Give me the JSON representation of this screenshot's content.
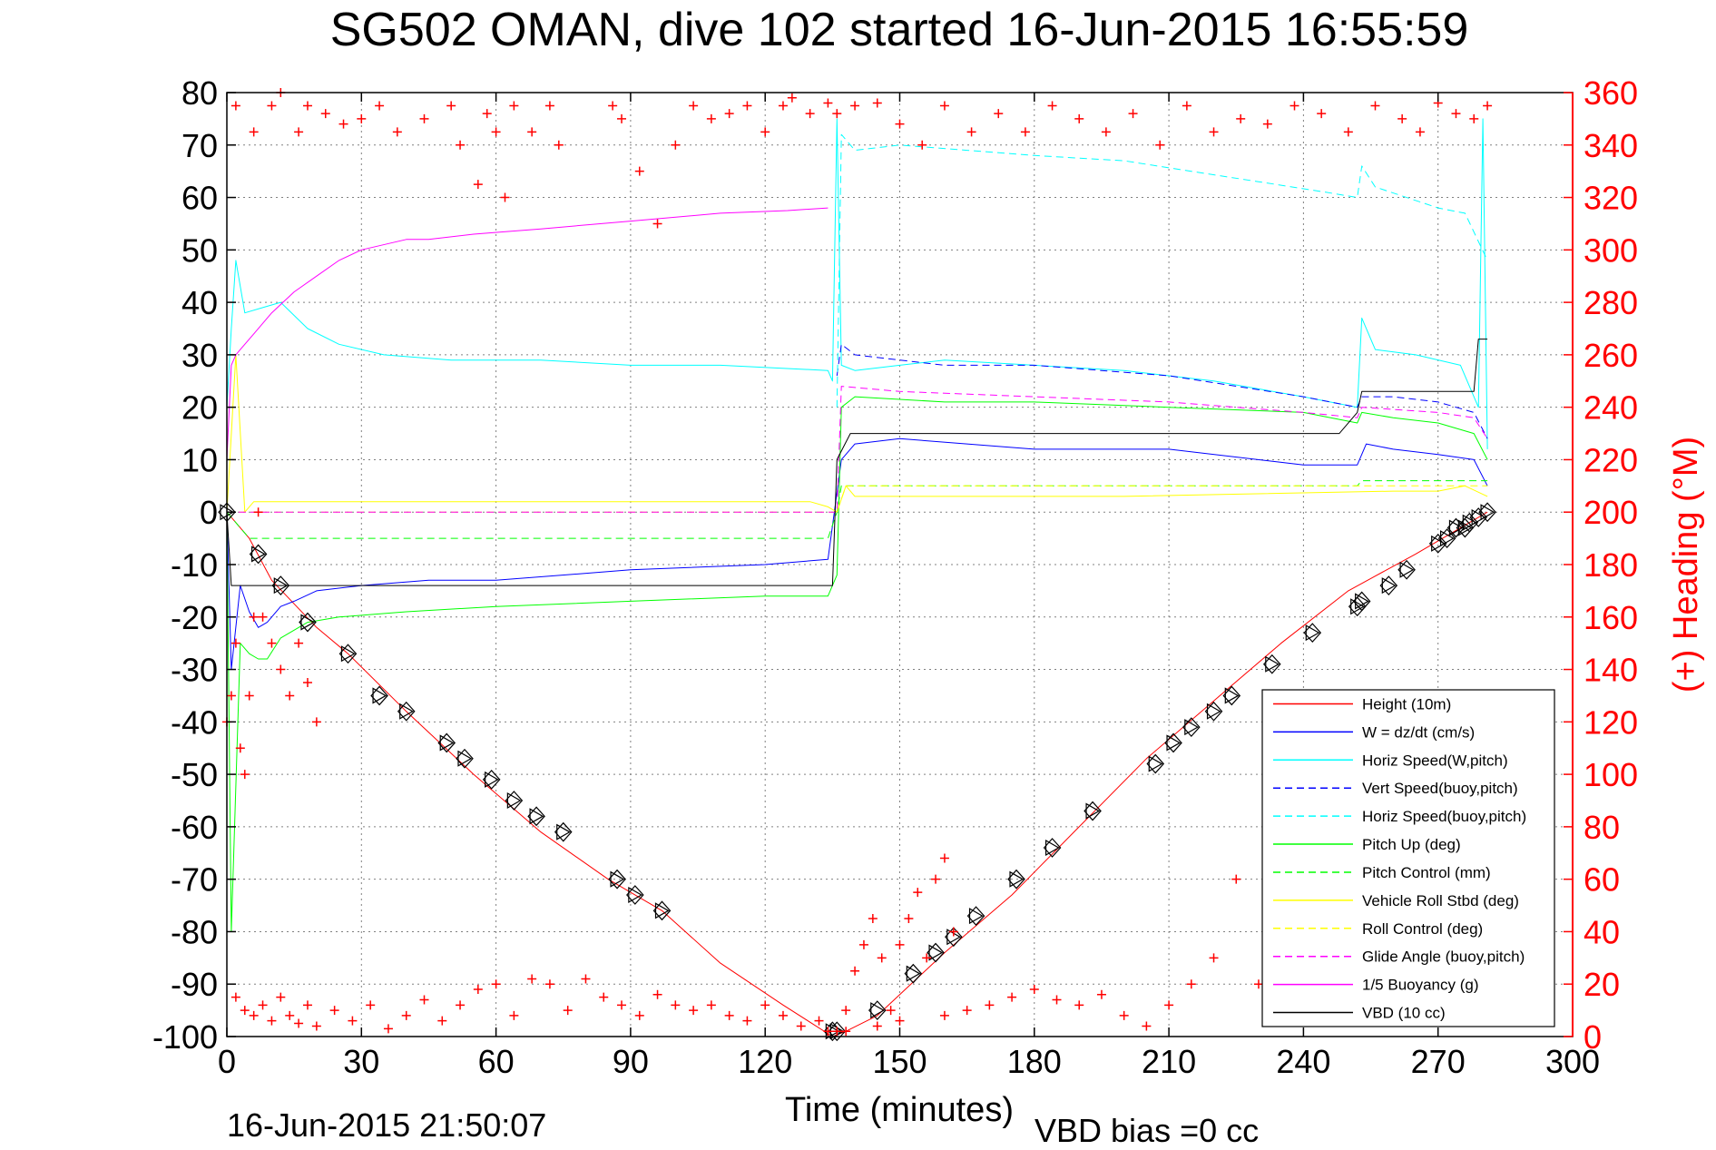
{
  "header": {
    "title": "SG502 OMAN, dive 102 started 16-Jun-2015 16:55:59"
  },
  "footer": {
    "timestamp": "16-Jun-2015 21:50:07",
    "vbd_bias": "VBD bias =0 cc"
  },
  "colors": {
    "height": "#ff0000",
    "w": "#0000ff",
    "horiz_speed": "#00ffff",
    "pitch": "#00ff00",
    "roll": "#ffff00",
    "glide": "#ff00ff",
    "buoyancy": "#ff00ff",
    "vbd": "#000000",
    "heading": "#ff0000",
    "grid": "#808080"
  },
  "chart_data": {
    "type": "line",
    "title": "SG502 OMAN, dive 102 started 16-Jun-2015 16:55:59",
    "xlabel": "Time (minutes)",
    "ylabel": "",
    "y2label": "(+) Heading (°M)",
    "xlim": [
      0,
      300
    ],
    "ylim": [
      -100,
      80
    ],
    "y2lim": [
      0,
      360
    ],
    "grid": true,
    "legend_position": "bottom-right",
    "xticks": [
      0,
      30,
      60,
      90,
      120,
      150,
      180,
      210,
      240,
      270,
      300
    ],
    "yticks": [
      80,
      70,
      60,
      50,
      40,
      30,
      20,
      10,
      0,
      -10,
      -20,
      -30,
      -40,
      -50,
      -60,
      -70,
      -80,
      -90,
      -100
    ],
    "y2ticks": [
      360,
      340,
      320,
      300,
      280,
      260,
      240,
      220,
      200,
      180,
      160,
      140,
      120,
      100,
      80,
      60,
      40,
      20,
      0
    ],
    "legend": [
      {
        "label": "Height (10m)",
        "color": "#ff0000",
        "dash": "solid"
      },
      {
        "label": "W = dz/dt (cm/s)",
        "color": "#0000ff",
        "dash": "solid"
      },
      {
        "label": "Horiz Speed(W,pitch)",
        "color": "#00ffff",
        "dash": "solid"
      },
      {
        "label": "Vert Speed(buoy,pitch)",
        "color": "#0000ff",
        "dash": "dashed"
      },
      {
        "label": "Horiz Speed(buoy,pitch)",
        "color": "#00ffff",
        "dash": "dashed"
      },
      {
        "label": "Pitch Up (deg)",
        "color": "#00ff00",
        "dash": "solid"
      },
      {
        "label": "Pitch Control (mm)",
        "color": "#00ff00",
        "dash": "dashed"
      },
      {
        "label": "Vehicle Roll Stbd (deg)",
        "color": "#ffff00",
        "dash": "solid"
      },
      {
        "label": "Roll Control (deg)",
        "color": "#ffff00",
        "dash": "dashed"
      },
      {
        "label": "Glide Angle (buoy,pitch)",
        "color": "#ff00ff",
        "dash": "dashed"
      },
      {
        "label": "1/5 Buoyancy (g)",
        "color": "#ff00ff",
        "dash": "solid"
      },
      {
        "label": "VBD (10 cc)",
        "color": "#000000",
        "dash": "solid"
      }
    ],
    "series": [
      {
        "name": "Height (10m)",
        "color": "#ff0000",
        "dash": "solid",
        "width": 1,
        "x": [
          0,
          5,
          10,
          20,
          27,
          40,
          55,
          70,
          85,
          97,
          110,
          124,
          135,
          138,
          145,
          160,
          175,
          190,
          205,
          220,
          235,
          250,
          265,
          275,
          281
        ],
        "y": [
          0,
          -5,
          -13,
          -22,
          -27,
          -38,
          -50,
          -61,
          -70,
          -76,
          -86,
          -94,
          -100,
          -99,
          -96,
          -84,
          -73,
          -60,
          -47,
          -36,
          -25,
          -15,
          -8,
          -3,
          0
        ]
      },
      {
        "name": "W = dz/dt (cm/s)",
        "color": "#0000ff",
        "dash": "solid",
        "width": 1,
        "x": [
          0,
          1,
          3,
          5,
          7,
          9,
          12,
          15,
          20,
          30,
          45,
          60,
          90,
          120,
          134,
          137,
          140,
          150,
          165,
          180,
          210,
          240,
          252,
          254,
          260,
          270,
          278,
          281
        ],
        "y": [
          0,
          -30,
          -14,
          -19,
          -22,
          -21,
          -18,
          -17,
          -15,
          -14,
          -13,
          -13,
          -11,
          -10,
          -9,
          10,
          13,
          14,
          13,
          12,
          12,
          9,
          9,
          13,
          12,
          11,
          10,
          5
        ]
      },
      {
        "name": "Horiz Speed(W,pitch)",
        "color": "#00ffff",
        "dash": "solid",
        "width": 1,
        "x": [
          0,
          1,
          2,
          4,
          8,
          12,
          18,
          25,
          35,
          50,
          70,
          90,
          110,
          134,
          135,
          136,
          137,
          140,
          150,
          160,
          180,
          200,
          220,
          240,
          252,
          253,
          256,
          265,
          275,
          279,
          280,
          281
        ],
        "y": [
          20,
          35,
          48,
          38,
          39,
          40,
          35,
          32,
          30,
          29,
          29,
          28,
          28,
          27,
          25,
          75,
          28,
          27,
          28,
          29,
          28,
          27,
          25,
          22,
          20,
          37,
          31,
          30,
          28,
          20,
          75,
          12
        ]
      },
      {
        "name": "Vert Speed(buoy,pitch)",
        "color": "#0000ff",
        "dash": "dashed",
        "width": 1,
        "x": [
          136,
          137,
          140,
          150,
          160,
          180,
          210,
          240,
          252,
          253,
          260,
          270,
          278,
          281
        ],
        "y": [
          26,
          32,
          30,
          29,
          28,
          28,
          26,
          22,
          20,
          22,
          22,
          21,
          19,
          14
        ]
      },
      {
        "name": "Horiz Speed(buoy,pitch)",
        "color": "#00ffff",
        "dash": "dashed",
        "width": 1,
        "x": [
          136,
          137,
          140,
          150,
          165,
          180,
          200,
          215,
          230,
          245,
          252,
          253,
          256,
          270,
          276,
          281
        ],
        "y": [
          20,
          72,
          69,
          70,
          69,
          68,
          67,
          65,
          63,
          61,
          60,
          66,
          62,
          58,
          57,
          48
        ]
      },
      {
        "name": "Pitch Up (deg)",
        "color": "#00ff00",
        "dash": "solid",
        "width": 1,
        "x": [
          0,
          1,
          3,
          5,
          7,
          9,
          12,
          18,
          25,
          40,
          60,
          90,
          120,
          134,
          136,
          137,
          140,
          160,
          180,
          210,
          240,
          252,
          253,
          260,
          270,
          278,
          281
        ],
        "y": [
          0,
          -80,
          -25,
          -27,
          -28,
          -28,
          -24,
          -21,
          -20,
          -19,
          -18,
          -17,
          -16,
          -16,
          -12,
          20,
          22,
          21,
          21,
          20,
          19,
          17,
          19,
          18,
          17,
          15,
          10
        ]
      },
      {
        "name": "Pitch Control (mm)",
        "color": "#00ff00",
        "dash": "dashed",
        "width": 1,
        "x": [
          0,
          5,
          134,
          136,
          137,
          252,
          253,
          281
        ],
        "y": [
          0,
          -5,
          -5,
          0,
          5,
          5,
          6,
          6
        ]
      },
      {
        "name": "Vehicle Roll Stbd (deg)",
        "color": "#ffff00",
        "dash": "solid",
        "width": 1,
        "x": [
          0,
          2,
          4,
          6,
          130,
          134,
          136,
          138,
          140,
          200,
          260,
          270,
          276,
          281
        ],
        "y": [
          0,
          30,
          0,
          2,
          2,
          1,
          0,
          5,
          3,
          3,
          4,
          4,
          5,
          3
        ]
      },
      {
        "name": "Roll Control (deg)",
        "color": "#ffff00",
        "dash": "dashed",
        "width": 1,
        "x": [
          0,
          134,
          136,
          138,
          281
        ],
        "y": [
          0,
          0,
          0,
          5,
          5
        ]
      },
      {
        "name": "Glide Angle (buoy,pitch)",
        "color": "#ff00ff",
        "dash": "dashed",
        "width": 1,
        "x": [
          0,
          134,
          136,
          137,
          150,
          180,
          210,
          240,
          252,
          253,
          270,
          278,
          281
        ],
        "y": [
          0,
          0,
          0,
          24,
          23,
          22,
          21,
          19,
          18,
          20,
          19,
          18,
          14
        ]
      },
      {
        "name": "1/5 Buoyancy (g)",
        "color": "#ff00ff",
        "dash": "solid",
        "width": 1,
        "x": [
          0,
          1,
          2,
          3,
          6,
          10,
          15,
          20,
          25,
          30,
          40,
          45,
          55,
          70,
          90,
          110,
          125,
          134
        ],
        "y": [
          10,
          28,
          30,
          31,
          34,
          38,
          42,
          45,
          48,
          50,
          52,
          52,
          53,
          54,
          55.5,
          57,
          57.5,
          58
        ]
      },
      {
        "name": "VBD (10 cc)",
        "color": "#000000",
        "dash": "solid",
        "width": 1,
        "x": [
          0,
          1,
          2,
          40,
          45,
          134,
          135,
          136,
          139,
          140,
          247,
          248,
          252,
          253,
          274,
          275,
          278,
          279,
          281
        ],
        "y": [
          0,
          -14,
          -14,
          -14,
          -14,
          -14,
          -14,
          10,
          15,
          15,
          15,
          15,
          19,
          23,
          23,
          23,
          23,
          33,
          33
        ]
      }
    ],
    "markers": {
      "name": "Height samples",
      "x": [
        0,
        7,
        12,
        18,
        27,
        34,
        40,
        49,
        53,
        59,
        64,
        69,
        75,
        87,
        91,
        97,
        135,
        136,
        145,
        153,
        158,
        162,
        167,
        176,
        184,
        193,
        207,
        211,
        215,
        220,
        224,
        233,
        242,
        252,
        253,
        259,
        263,
        270,
        272,
        274,
        276,
        277,
        279,
        281
      ],
      "y": [
        0,
        -8,
        -14,
        -21,
        -27,
        -35,
        -38,
        -44,
        -47,
        -51,
        -55,
        -58,
        -61,
        -70,
        -73,
        -76,
        -99,
        -99,
        -95,
        -88,
        -84,
        -81,
        -77,
        -70,
        -64,
        -57,
        -48,
        -44,
        -41,
        -38,
        -35,
        -29,
        -23,
        -18,
        -17,
        -14,
        -11,
        -6,
        -5,
        -3,
        -3,
        -2,
        -1,
        0
      ]
    },
    "heading_segments": [
      {
        "axis": "right",
        "x": [
          0,
          1,
          2,
          3,
          4,
          5,
          6,
          7,
          8,
          10,
          12,
          14,
          16,
          18,
          20
        ],
        "y": [
          120,
          130,
          150,
          110,
          100,
          130,
          160,
          200,
          160,
          150,
          140,
          130,
          150,
          135,
          120
        ]
      },
      {
        "axis": "right",
        "x": [
          2,
          4,
          6,
          8,
          10,
          12,
          14,
          16,
          18,
          20,
          24,
          28,
          32,
          36,
          40,
          44,
          48,
          52,
          56,
          60,
          64,
          68,
          72,
          76,
          80,
          84,
          88,
          92,
          96,
          100,
          104,
          108,
          112,
          116,
          120,
          124,
          128,
          132,
          134
        ],
        "y": [
          15,
          10,
          8,
          12,
          6,
          15,
          8,
          5,
          12,
          4,
          10,
          6,
          12,
          3,
          8,
          14,
          6,
          12,
          18,
          20,
          8,
          22,
          20,
          10,
          22,
          15,
          12,
          8,
          16,
          12,
          10,
          12,
          8,
          6,
          12,
          8,
          4,
          6,
          2
        ]
      },
      {
        "axis": "right",
        "x": [
          2,
          6,
          10,
          12,
          16,
          18,
          22,
          26,
          30,
          34,
          38,
          44,
          50,
          52,
          56,
          58,
          60,
          62,
          64,
          68,
          72,
          74,
          86,
          88,
          92,
          96,
          100,
          104,
          108,
          112,
          116,
          120,
          124,
          126,
          130,
          134
        ],
        "y": [
          355,
          345,
          355,
          360,
          345,
          355,
          352,
          348,
          350,
          355,
          345,
          350,
          355,
          340,
          325,
          352,
          345,
          320,
          355,
          345,
          355,
          340,
          355,
          350,
          330,
          310,
          340,
          355,
          350,
          352,
          355,
          345,
          355,
          358,
          352,
          356
        ]
      },
      {
        "axis": "right",
        "x": [
          136,
          138,
          140,
          142,
          144,
          146,
          148,
          150,
          152,
          154,
          156,
          158,
          160,
          162
        ],
        "y": [
          2,
          10,
          25,
          35,
          45,
          30,
          10,
          35,
          45,
          55,
          30,
          60,
          68,
          40
        ]
      },
      {
        "axis": "right",
        "x": [
          136,
          140,
          145,
          150,
          155,
          160,
          166,
          172,
          178,
          184,
          190,
          196,
          202,
          208,
          214,
          220,
          226,
          232,
          238,
          244,
          250,
          256,
          262,
          266,
          270,
          274,
          278,
          281
        ],
        "y": [
          352,
          355,
          356,
          348,
          340,
          355,
          345,
          352,
          345,
          355,
          350,
          345,
          352,
          340,
          355,
          345,
          350,
          348,
          355,
          352,
          345,
          355,
          350,
          345,
          356,
          352,
          350,
          355
        ]
      },
      {
        "axis": "right",
        "x": [
          138,
          145,
          150,
          160,
          165,
          170,
          175,
          180,
          185,
          190,
          195,
          200,
          205,
          210,
          215,
          220,
          225,
          230,
          235,
          240,
          245,
          250,
          255,
          260,
          265,
          270,
          275,
          280
        ],
        "y": [
          2,
          4,
          6,
          8,
          10,
          12,
          15,
          18,
          14,
          12,
          16,
          8,
          4,
          12,
          20,
          30,
          60,
          20,
          10,
          15,
          8,
          25,
          35,
          20,
          30,
          12,
          35,
          20
        ]
      }
    ]
  }
}
